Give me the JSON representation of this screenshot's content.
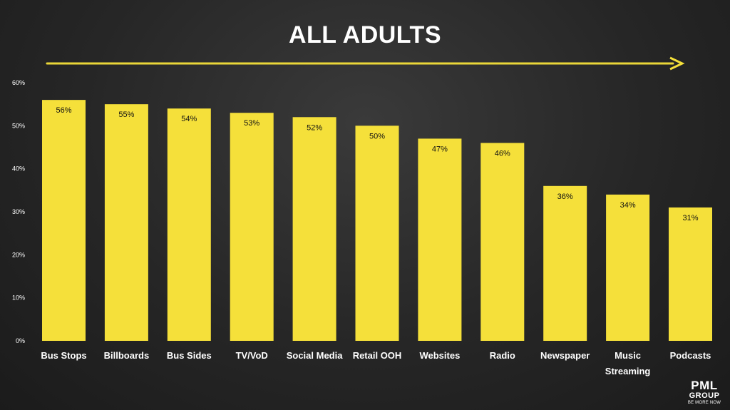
{
  "colors": {
    "bar": "#f5e03a",
    "arrow": "#f5e03a",
    "text": "#ffffff",
    "label_on_bar": "#111111"
  },
  "logo": {
    "line1": "PML",
    "line2": "GROUP",
    "line3": "BE MORE NOW"
  },
  "chart_data": {
    "type": "bar",
    "title": "ALL ADULTS",
    "categories": [
      "Bus Stops",
      "Billboards",
      "Bus Sides",
      "TV/VoD",
      "Social Media",
      "Retail OOH",
      "Websites",
      "Radio",
      "Newspaper",
      "Music Streaming",
      "Podcasts"
    ],
    "category_labels": [
      [
        "Bus Stops"
      ],
      [
        "Billboards"
      ],
      [
        "Bus Sides"
      ],
      [
        "TV/VoD"
      ],
      [
        "Social Media"
      ],
      [
        "Retail OOH"
      ],
      [
        "Websites"
      ],
      [
        "Radio"
      ],
      [
        "Newspaper"
      ],
      [
        "Music",
        "Streaming"
      ],
      [
        "Podcasts"
      ]
    ],
    "values": [
      56,
      55,
      54,
      53,
      52,
      50,
      47,
      46,
      36,
      34,
      31
    ],
    "data_labels": [
      "56%",
      "55%",
      "54%",
      "53%",
      "52%",
      "50%",
      "47%",
      "46%",
      "36%",
      "34%",
      "31%"
    ],
    "ylim": [
      0,
      60
    ],
    "yticks": [
      0,
      10,
      20,
      30,
      40,
      50,
      60
    ],
    "ytick_labels": [
      "0%",
      "10%",
      "20%",
      "30%",
      "40%",
      "50%",
      "60%"
    ],
    "grid": false,
    "legend": "none"
  }
}
